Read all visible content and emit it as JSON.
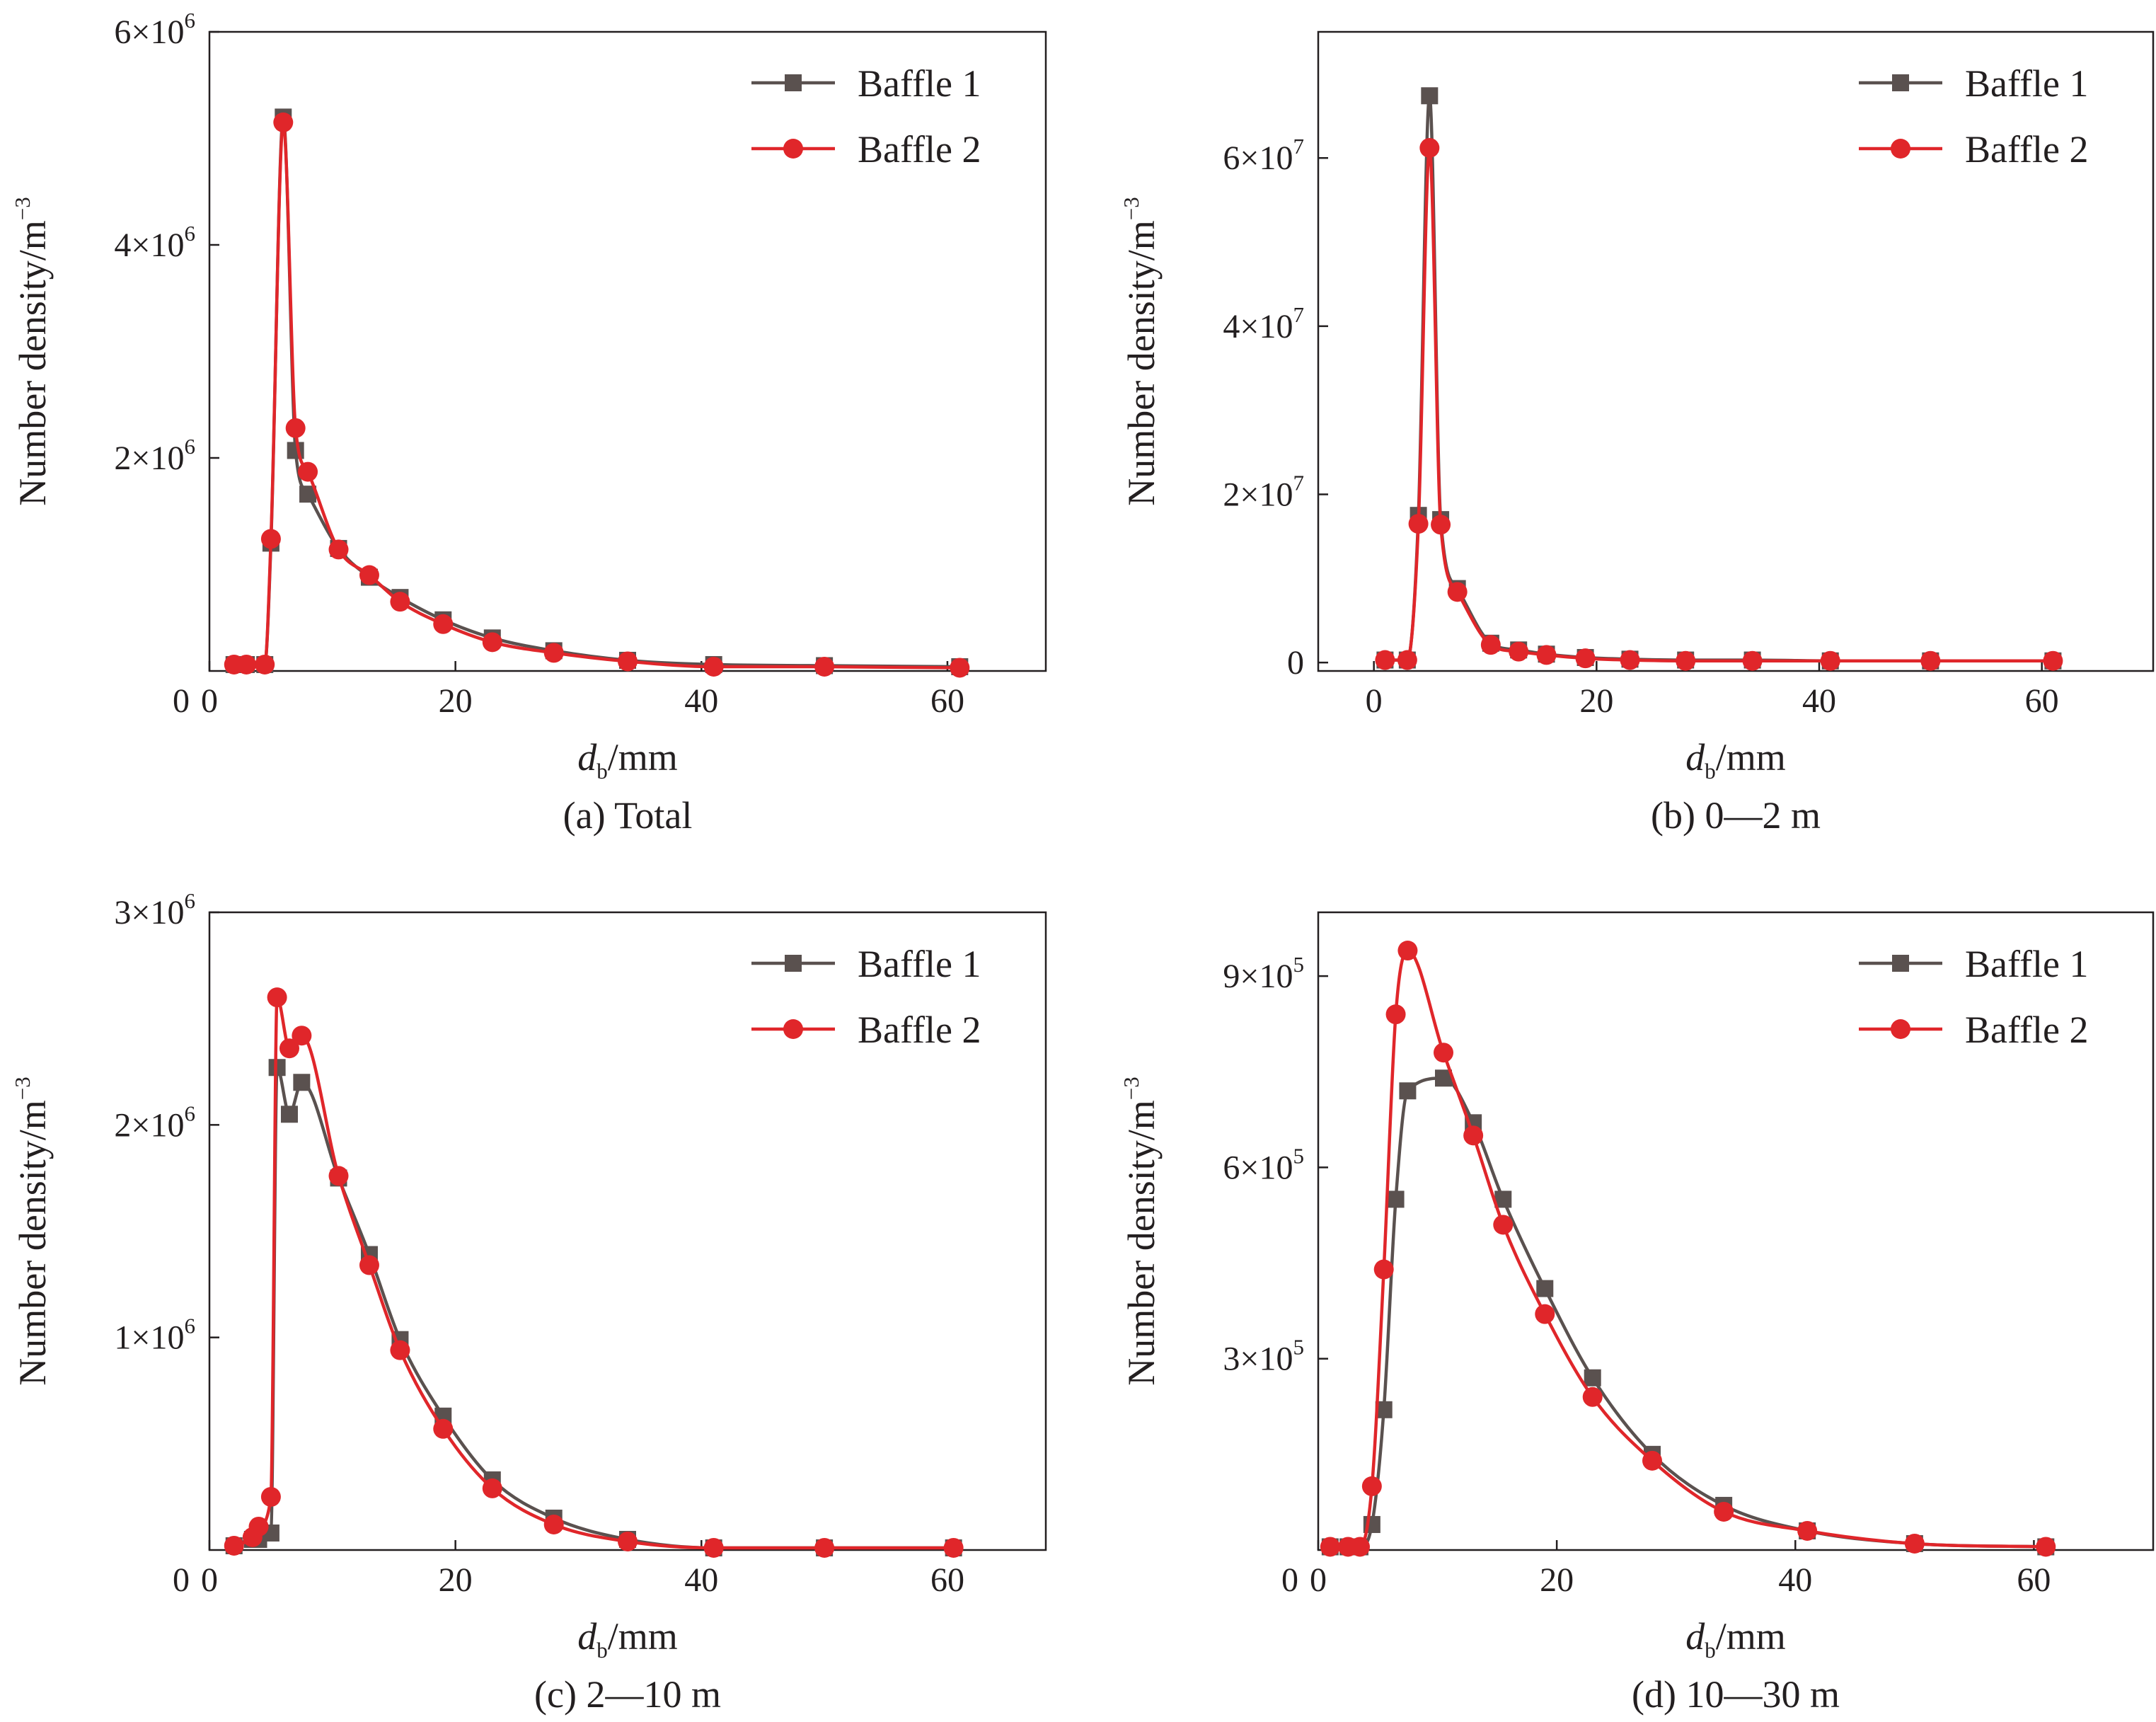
{
  "figure": {
    "series_colors": {
      "Baffle 1": "#5a514f",
      "Baffle 2": "#e0262a"
    },
    "series_markers": {
      "Baffle 1": "square",
      "Baffle 2": "circle"
    }
  },
  "chart_data": [
    {
      "id": "a",
      "type": "line",
      "caption": "(a) Total",
      "xlabel_main": "d",
      "xlabel_sub": "b",
      "xlabel_unit": "/mm",
      "ylabel": "Number density/m",
      "ylabel_exp": "−3",
      "xlim": [
        0,
        68
      ],
      "ylim": [
        0,
        6000000
      ],
      "xticks": [
        0,
        20,
        40,
        60
      ],
      "yticks": [
        {
          "value": 2000000,
          "mant": "2×10",
          "exp": "6"
        },
        {
          "value": 4000000,
          "mant": "4×10",
          "exp": "6"
        },
        {
          "value": 6000000,
          "mant": "6×10",
          "exp": "6"
        }
      ],
      "zero_label": "0",
      "zero_label_axis": "x",
      "series": [
        {
          "name": "Baffle 1",
          "x": [
            2,
            3,
            4.5,
            5,
            6,
            7,
            8,
            10.5,
            13,
            15.5,
            19,
            23,
            28,
            34,
            41,
            50,
            61
          ],
          "y": [
            60000,
            60000,
            60000,
            1200000,
            5200000,
            2070000,
            1660000,
            1150000,
            880000,
            690000,
            480000,
            310000,
            190000,
            100000,
            60000,
            50000,
            40000
          ]
        },
        {
          "name": "Baffle 2",
          "x": [
            2,
            3,
            4.5,
            5,
            6,
            7,
            8,
            10.5,
            13,
            15.5,
            19,
            23,
            28,
            34,
            41,
            50,
            61
          ],
          "y": [
            60000,
            60000,
            60000,
            1240000,
            5150000,
            2280000,
            1870000,
            1140000,
            900000,
            650000,
            440000,
            270000,
            170000,
            90000,
            40000,
            40000,
            30000
          ]
        }
      ]
    },
    {
      "id": "b",
      "type": "line",
      "caption": "(b) 0—2 m",
      "xlabel_main": "d",
      "xlabel_sub": "b",
      "xlabel_unit": "/mm",
      "ylabel": "Number density/m",
      "ylabel_exp": "−3",
      "xlim": [
        -5,
        70
      ],
      "ylim": [
        -1000000,
        75000000
      ],
      "xticks": [
        0,
        20,
        40,
        60
      ],
      "yticks": [
        {
          "value": 0,
          "mant": "0",
          "exp": ""
        },
        {
          "value": 20000000,
          "mant": "2×10",
          "exp": "7"
        },
        {
          "value": 40000000,
          "mant": "4×10",
          "exp": "7"
        },
        {
          "value": 60000000,
          "mant": "6×10",
          "exp": "7"
        }
      ],
      "zero_label": "",
      "zero_label_axis": "x",
      "series": [
        {
          "name": "Baffle 1",
          "x": [
            1,
            3,
            4,
            5,
            6,
            7.5,
            10.5,
            13,
            15.5,
            19,
            23,
            28,
            34,
            41,
            50,
            61
          ],
          "y": [
            300000,
            300000,
            17500000,
            67400000,
            17000000,
            8800000,
            2300000,
            1500000,
            1000000,
            600000,
            400000,
            300000,
            300000,
            200000,
            200000,
            200000
          ]
        },
        {
          "name": "Baffle 2",
          "x": [
            1,
            3,
            4,
            5,
            6,
            7.5,
            10.5,
            13,
            15.5,
            19,
            23,
            28,
            34,
            41,
            50,
            61
          ],
          "y": [
            300000,
            300000,
            16500000,
            61200000,
            16400000,
            8400000,
            2100000,
            1300000,
            900000,
            500000,
            300000,
            200000,
            200000,
            200000,
            200000,
            200000
          ]
        }
      ]
    },
    {
      "id": "c",
      "type": "line",
      "caption": "(c) 2—10 m",
      "xlabel_main": "d",
      "xlabel_sub": "b",
      "xlabel_unit": "/mm",
      "ylabel": "Number density/m",
      "ylabel_exp": "−3",
      "xlim": [
        0,
        68
      ],
      "ylim": [
        0,
        3000000
      ],
      "xticks": [
        0,
        20,
        40,
        60
      ],
      "yticks": [
        {
          "value": 1000000,
          "mant": "1×10",
          "exp": "6"
        },
        {
          "value": 2000000,
          "mant": "2×10",
          "exp": "6"
        },
        {
          "value": 3000000,
          "mant": "3×10",
          "exp": "6"
        }
      ],
      "zero_label": "0",
      "zero_label_axis": "x",
      "series": [
        {
          "name": "Baffle 1",
          "x": [
            2,
            3.5,
            4,
            5,
            5.5,
            6.5,
            7.5,
            10.5,
            13,
            15.5,
            19,
            23,
            28,
            34,
            41,
            50,
            60.5
          ],
          "y": [
            20000,
            50000,
            50000,
            80000,
            2270000,
            2050000,
            2200000,
            1750000,
            1390000,
            990000,
            630000,
            330000,
            150000,
            50000,
            10000,
            10000,
            10000
          ]
        },
        {
          "name": "Baffle 2",
          "x": [
            2,
            3.5,
            4,
            5,
            5.5,
            6.5,
            7.5,
            10.5,
            13,
            15.5,
            19,
            23,
            28,
            34,
            41,
            50,
            60.5
          ],
          "y": [
            20000,
            60000,
            110000,
            250000,
            2600000,
            2360000,
            2420000,
            1760000,
            1340000,
            940000,
            570000,
            290000,
            120000,
            40000,
            10000,
            10000,
            10000
          ]
        }
      ]
    },
    {
      "id": "d",
      "type": "line",
      "caption": "(d) 10—30 m",
      "xlabel_main": "d",
      "xlabel_sub": "b",
      "xlabel_unit": "/mm",
      "ylabel": "Number density/m",
      "ylabel_exp": "−3",
      "xlim": [
        0,
        70
      ],
      "ylim": [
        0,
        1000000
      ],
      "xticks": [
        0,
        20,
        40,
        60
      ],
      "yticks": [
        {
          "value": 300000,
          "mant": "3×10",
          "exp": "5"
        },
        {
          "value": 600000,
          "mant": "6×10",
          "exp": "5"
        },
        {
          "value": 900000,
          "mant": "9×10",
          "exp": "5"
        }
      ],
      "zero_label": "0",
      "zero_label_axis": "x",
      "series": [
        {
          "name": "Baffle 1",
          "x": [
            1,
            2.5,
            3.5,
            4.5,
            5.5,
            6.5,
            7.5,
            10.5,
            13,
            15.5,
            19,
            23,
            28,
            34,
            41,
            50,
            61
          ],
          "y": [
            5000,
            5000,
            5000,
            40000,
            220000,
            550000,
            720000,
            740000,
            670000,
            550000,
            410000,
            270000,
            150000,
            70000,
            30000,
            10000,
            5000
          ]
        },
        {
          "name": "Baffle 2",
          "x": [
            1,
            2.5,
            3.5,
            4.5,
            5.5,
            6.5,
            7.5,
            10.5,
            13,
            15.5,
            19,
            23,
            28,
            34,
            41,
            50,
            61
          ],
          "y": [
            5000,
            5000,
            5000,
            100000,
            440000,
            840000,
            940000,
            780000,
            650000,
            510000,
            370000,
            240000,
            140000,
            60000,
            30000,
            10000,
            5000
          ]
        }
      ]
    }
  ]
}
